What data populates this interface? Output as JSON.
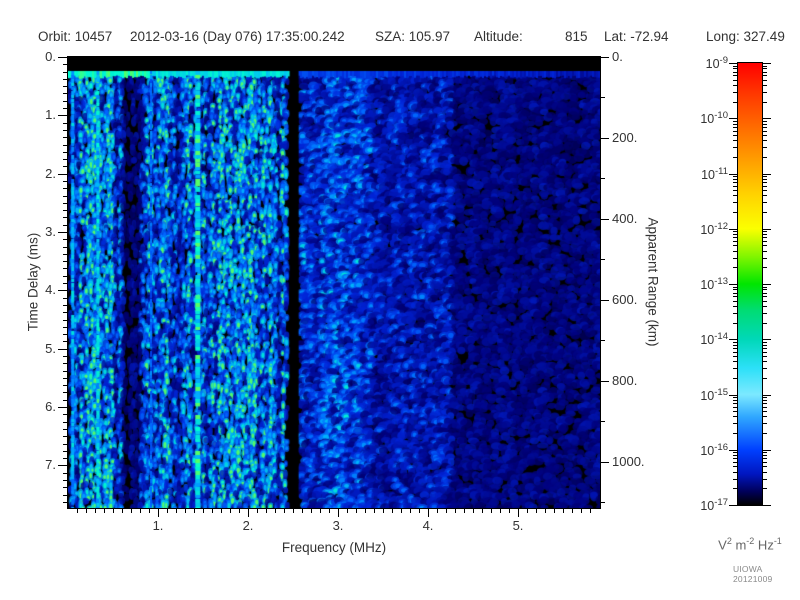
{
  "header": {
    "orbit": "Orbit: 10457",
    "datetime": "2012-03-16 (Day 076) 17:35:00.242",
    "sza": "SZA: 105.97",
    "altitude_label": "Altitude:",
    "altitude_value": "815",
    "lat": "Lat: -72.94",
    "lon": "Long: 327.49"
  },
  "credit": "UIOWA 20121009",
  "chart_data": {
    "type": "heatmap",
    "xlabel": "Frequency (MHz)",
    "ylabel": "Time Delay (ms)",
    "y2label": "Apparent Range (km)",
    "xlim": [
      0,
      5.91
    ],
    "ylim": [
      0,
      7.73
    ],
    "y2lim": [
      0,
      1114
    ],
    "x_ticks": [
      1,
      2,
      3,
      4,
      5
    ],
    "x_tick_labels": [
      "1.",
      "2.",
      "3.",
      "4.",
      "5."
    ],
    "x_minor_step": 0.1,
    "y_ticks": [
      0,
      1,
      2,
      3,
      4,
      5,
      6,
      7
    ],
    "y_tick_labels": [
      "0.",
      "1.",
      "2.",
      "3.",
      "4.",
      "5.",
      "6.",
      "7."
    ],
    "y_minor_step": 0.125,
    "y2_ticks": [
      0,
      200,
      400,
      600,
      800,
      1000
    ],
    "y2_tick_labels": [
      "0.",
      "200.",
      "400.",
      "600.",
      "800.",
      "1000."
    ],
    "y2_minor_step": 100,
    "colorbar": {
      "range": [
        "1e-17",
        "1e-9"
      ],
      "tick_exponents": [
        -9,
        -10,
        -11,
        -12,
        -13,
        -14,
        -15,
        -16,
        -17
      ],
      "unit_parts": [
        [
          "V",
          "2"
        ],
        [
          "m",
          "-2"
        ],
        [
          "Hz",
          "-1"
        ]
      ],
      "gradient_stops": [
        [
          0,
          "#ff0000"
        ],
        [
          7,
          "#ff3800"
        ],
        [
          14,
          "#ff6800"
        ],
        [
          22,
          "#ff9e00"
        ],
        [
          30,
          "#ffd400"
        ],
        [
          37.5,
          "#fbff00"
        ],
        [
          44,
          "#7df500"
        ],
        [
          50,
          "#00e600"
        ],
        [
          56,
          "#00dc74"
        ],
        [
          62.5,
          "#00d8b8"
        ],
        [
          69,
          "#2ce0f8"
        ],
        [
          75,
          "#7ce9ff"
        ],
        [
          80,
          "#30a8ff"
        ],
        [
          87.5,
          "#0040ff"
        ],
        [
          93,
          "#0016c0"
        ],
        [
          97,
          "#000058"
        ],
        [
          100,
          "#000000"
        ]
      ]
    },
    "noise": {
      "seed": 20121009,
      "background_level_note": "speckled noise mostly 1e-16 to 1e-15 (blue to cyan)",
      "color_stops": [
        [
          0,
          "#000014"
        ],
        [
          0.16,
          "#00007a"
        ],
        [
          0.36,
          "#0024d8"
        ],
        [
          0.56,
          "#0066ff"
        ],
        [
          0.76,
          "#00b4ff"
        ],
        [
          0.9,
          "#00e8d8"
        ],
        [
          0.97,
          "#00ffd0"
        ],
        [
          1,
          "#55ff66"
        ]
      ],
      "freq_bands": [
        {
          "f0": 0.0,
          "f1": 0.5,
          "b": 0.82
        },
        {
          "f0": 0.5,
          "f1": 0.6,
          "b": 0.5
        },
        {
          "f0": 0.6,
          "f1": 0.78,
          "b": 0.24
        },
        {
          "f0": 0.78,
          "f1": 1.05,
          "b": 0.62
        },
        {
          "f0": 1.05,
          "f1": 2.42,
          "b": 0.72
        },
        {
          "f0": 2.42,
          "f1": 2.56,
          "b": 0.0
        },
        {
          "f0": 2.56,
          "f1": 3.35,
          "b": 0.56
        },
        {
          "f0": 3.35,
          "f1": 4.25,
          "b": 0.4
        },
        {
          "f0": 4.25,
          "f1": 6.0,
          "b": 0.24
        }
      ]
    },
    "features": {
      "saturation_band_ms": [
        0,
        0.24
      ],
      "surface_echo_delay_ms": 0.3,
      "bright_vertical_lines_mhz": [
        {
          "f": 0.03,
          "w": 3,
          "t": 0.78
        },
        {
          "f": 0.31,
          "w": 3,
          "t": 0.85
        },
        {
          "f": 0.9,
          "w": 2,
          "t": 0.6
        },
        {
          "f": 1.42,
          "w": 5,
          "t": 0.95
        }
      ],
      "dark_vertical_band_mhz": [
        2.44,
        2.54
      ]
    }
  }
}
